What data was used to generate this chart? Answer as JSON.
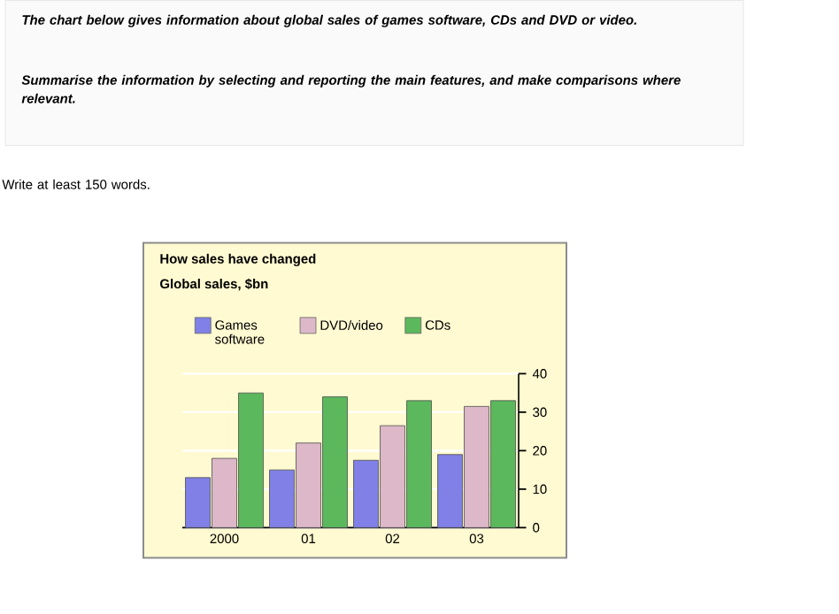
{
  "chart_data": {
    "type": "bar",
    "title": "How sales have changed",
    "subtitle": "Global sales, $bn",
    "annotations": [
      "The chart below gives information about global sales of games software, CDs and DVD or video.",
      "Summarise the information by selecting and reporting the main features, and make comparisons where relevant.",
      "Write at least 150 words."
    ],
    "categories": [
      "2000",
      "01",
      "02",
      "03"
    ],
    "series": [
      {
        "name": "Games software",
        "color": "#8080e6",
        "values": [
          13,
          15,
          17.5,
          19
        ]
      },
      {
        "name": "DVD/video",
        "color": "#dcb8c8",
        "values": [
          18,
          22,
          26.5,
          31.5
        ]
      },
      {
        "name": "CDs",
        "color": "#5cb85c",
        "values": [
          35,
          34,
          33,
          33
        ]
      }
    ],
    "ylim": [
      0,
      40
    ],
    "yticks": [
      0,
      10,
      20,
      30,
      40
    ],
    "grid": "y",
    "legend": "top"
  }
}
